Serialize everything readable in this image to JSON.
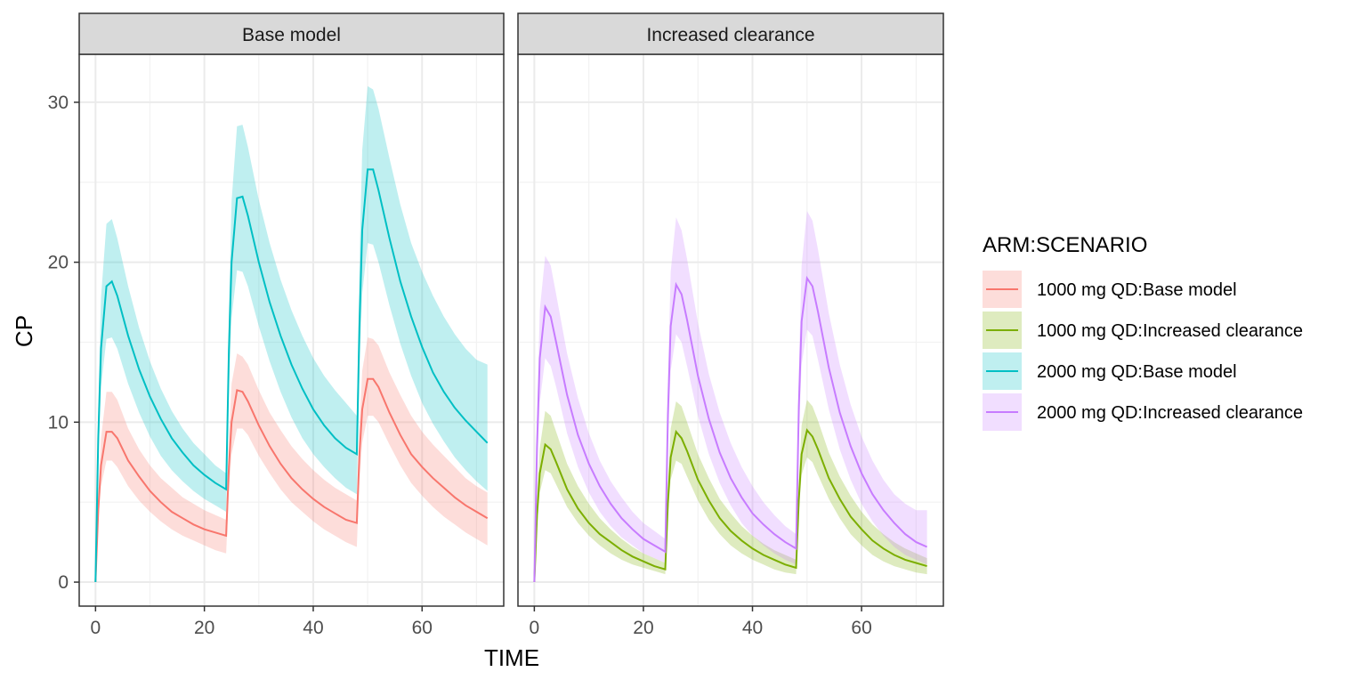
{
  "chart_data": {
    "type": "line",
    "xlabel": "TIME",
    "ylabel": "CP",
    "xlim": [
      -3,
      75
    ],
    "ylim": [
      -1.5,
      33
    ],
    "x_ticks": [
      0,
      20,
      40,
      60
    ],
    "y_ticks": [
      0,
      10,
      20,
      30
    ],
    "grid": true,
    "legend": {
      "title": "ARM:SCENARIO",
      "placement": "right",
      "entries": [
        "1000 mg QD:Base model",
        "1000 mg QD:Increased clearance",
        "2000 mg QD:Base model",
        "2000 mg QD:Increased clearance"
      ]
    },
    "panels": [
      {
        "title": "Base model",
        "series": [
          {
            "name": "1000 mg QD:Base model",
            "color": "#F8766D",
            "x": [
              0,
              0.5,
              1,
              2,
              3,
              4,
              6,
              8,
              10,
              12,
              14,
              16,
              18,
              20,
              22,
              24,
              24.5,
              25,
              26,
              27,
              28,
              30,
              32,
              34,
              36,
              38,
              40,
              42,
              44,
              46,
              48,
              48.5,
              49,
              50,
              51,
              52,
              54,
              56,
              58,
              60,
              62,
              64,
              66,
              68,
              70,
              72
            ],
            "y": [
              0,
              4.5,
              7.3,
              9.4,
              9.4,
              9.0,
              7.6,
              6.6,
              5.7,
              5.0,
              4.4,
              4.0,
              3.6,
              3.3,
              3.1,
              2.9,
              7.2,
              10.0,
              12.0,
              11.9,
              11.3,
              9.8,
              8.5,
              7.4,
              6.5,
              5.8,
              5.2,
              4.7,
              4.3,
              3.9,
              3.7,
              8.0,
              10.8,
              12.7,
              12.7,
              12.2,
              10.6,
              9.2,
              8.0,
              7.2,
              6.5,
              5.9,
              5.3,
              4.8,
              4.4,
              4.0
            ],
            "lower": [
              0,
              3.8,
              6.0,
              7.6,
              7.6,
              7.2,
              6.0,
              5.1,
              4.4,
              3.8,
              3.3,
              2.9,
              2.6,
              2.3,
              2.0,
              1.8,
              5.7,
              8.0,
              9.6,
              9.6,
              9.2,
              7.9,
              6.8,
              5.8,
              5.0,
              4.4,
              3.8,
              3.3,
              2.9,
              2.5,
              2.2,
              6.3,
              8.7,
              10.4,
              10.4,
              10.0,
              8.6,
              7.3,
              6.2,
              5.4,
              4.7,
              4.1,
              3.6,
              3.1,
              2.7,
              2.3
            ],
            "upper": [
              0,
              5.5,
              9.0,
              11.9,
              11.9,
              11.4,
              9.6,
              8.3,
              7.3,
              6.5,
              5.9,
              5.3,
              4.9,
              4.5,
              4.2,
              3.9,
              9.0,
              12.4,
              14.3,
              14.1,
              13.6,
              12.0,
              10.6,
              9.5,
              8.5,
              7.7,
              7.0,
              6.4,
              5.9,
              5.5,
              5.1,
              9.8,
              13.2,
              15.3,
              15.2,
              14.8,
              13.1,
              11.7,
              10.4,
              9.4,
              8.6,
              7.9,
              7.2,
              6.5,
              6.0,
              5.6
            ]
          },
          {
            "name": "2000 mg QD:Base model",
            "color": "#00BFC4",
            "x": [
              0,
              0.5,
              1,
              2,
              3,
              4,
              6,
              8,
              10,
              12,
              14,
              16,
              18,
              20,
              22,
              24,
              24.5,
              25,
              26,
              27,
              28,
              30,
              32,
              34,
              36,
              38,
              40,
              42,
              44,
              46,
              48,
              48.5,
              49,
              50,
              51,
              52,
              54,
              56,
              58,
              60,
              62,
              64,
              66,
              68,
              70,
              72
            ],
            "y": [
              0,
              9.0,
              14.6,
              18.5,
              18.8,
              17.9,
              15.4,
              13.3,
              11.6,
              10.2,
              9.0,
              8.1,
              7.3,
              6.7,
              6.2,
              5.8,
              14.5,
              20.0,
              24.0,
              24.1,
              22.9,
              20.0,
              17.5,
              15.4,
              13.6,
              12.1,
              10.8,
              9.8,
              9.0,
              8.4,
              8.0,
              16.0,
              22.0,
              25.8,
              25.8,
              24.5,
              21.5,
              18.8,
              16.6,
              14.7,
              13.1,
              11.9,
              10.9,
              10.1,
              9.4,
              8.7
            ],
            "lower": [
              0,
              7.6,
              12.2,
              15.2,
              15.3,
              14.6,
              12.4,
              10.6,
              9.1,
              7.9,
              7.0,
              6.3,
              5.7,
              5.2,
              4.8,
              4.4,
              12.0,
              16.5,
              19.5,
              19.4,
              18.5,
              16.0,
              13.8,
              11.9,
              10.3,
              9.0,
              8.0,
              7.2,
              6.5,
              5.9,
              5.5,
              13.4,
              18.0,
              21.2,
              21.1,
              20.0,
              17.3,
              14.9,
              12.9,
              11.2,
              9.9,
              8.8,
              7.8,
              7.0,
              6.3,
              5.7
            ],
            "upper": [
              0,
              11.0,
              17.8,
              22.4,
              22.7,
              21.5,
              18.5,
              15.9,
              13.8,
              12.1,
              10.7,
              9.6,
              8.7,
              8.0,
              7.3,
              6.8,
              17.0,
              23.8,
              28.5,
              28.6,
              27.2,
              23.9,
              21.2,
              18.9,
              17.0,
              15.4,
              14.0,
              12.9,
              12.0,
              11.2,
              10.4,
              20.0,
              27.0,
              31.0,
              30.8,
              29.6,
              26.5,
              23.6,
              21.2,
              19.4,
              17.9,
              16.6,
              15.5,
              14.6,
              13.9,
              13.6
            ]
          }
        ]
      },
      {
        "title": "Increased clearance",
        "series": [
          {
            "name": "1000 mg QD:Increased clearance",
            "color": "#7CAE00",
            "x": [
              0,
              0.5,
              1,
              2,
              3,
              4,
              6,
              8,
              10,
              12,
              14,
              16,
              18,
              20,
              22,
              24,
              24.5,
              25,
              26,
              27,
              28,
              30,
              32,
              34,
              36,
              38,
              40,
              42,
              44,
              46,
              48,
              48.5,
              49,
              50,
              51,
              52,
              54,
              56,
              58,
              60,
              62,
              64,
              66,
              68,
              70,
              72
            ],
            "y": [
              0,
              4.2,
              6.8,
              8.6,
              8.3,
              7.5,
              5.8,
              4.6,
              3.7,
              3.0,
              2.5,
              2.0,
              1.6,
              1.3,
              1.0,
              0.8,
              5.0,
              7.8,
              9.4,
              9.0,
              8.2,
              6.4,
              5.1,
              4.0,
              3.2,
              2.6,
              2.1,
              1.7,
              1.4,
              1.1,
              0.9,
              5.2,
              8.0,
              9.5,
              9.1,
              8.3,
              6.5,
              5.2,
              4.1,
              3.3,
              2.6,
              2.1,
              1.7,
              1.4,
              1.2,
              1.0
            ],
            "lower": [
              0,
              3.4,
              5.6,
              7.0,
              6.8,
              6.1,
              4.7,
              3.7,
              2.9,
              2.3,
              1.8,
              1.4,
              1.1,
              0.9,
              0.7,
              0.5,
              4.2,
              6.4,
              7.6,
              7.4,
              6.6,
              5.1,
              3.9,
              3.0,
              2.3,
              1.8,
              1.4,
              1.1,
              0.8,
              0.6,
              0.5,
              4.4,
              6.7,
              7.8,
              7.5,
              6.7,
              5.2,
              4.0,
              3.0,
              2.3,
              1.7,
              1.3,
              1.0,
              0.8,
              0.6,
              0.5
            ],
            "upper": [
              0,
              5.2,
              8.4,
              10.7,
              10.4,
              9.4,
              7.4,
              6.0,
              4.9,
              4.0,
              3.3,
              2.7,
              2.2,
              1.8,
              1.5,
              1.2,
              6.2,
              9.6,
              11.3,
              11.0,
              10.0,
              8.0,
              6.5,
              5.2,
              4.3,
              3.5,
              2.9,
              2.4,
              2.0,
              1.7,
              1.4,
              6.4,
              9.8,
              11.4,
              11.0,
              10.1,
              8.1,
              6.6,
              5.4,
              4.4,
              3.6,
              3.0,
              2.5,
              2.1,
              1.8,
              1.5
            ]
          },
          {
            "name": "2000 mg QD:Increased clearance",
            "color": "#C77CFF",
            "x": [
              0,
              0.5,
              1,
              2,
              3,
              4,
              6,
              8,
              10,
              12,
              14,
              16,
              18,
              20,
              22,
              24,
              24.5,
              25,
              26,
              27,
              28,
              30,
              32,
              34,
              36,
              38,
              40,
              42,
              44,
              46,
              48,
              48.5,
              49,
              50,
              51,
              52,
              54,
              56,
              58,
              60,
              62,
              64,
              66,
              68,
              70,
              72
            ],
            "y": [
              0,
              8.5,
              14.0,
              17.2,
              16.6,
              15.0,
              11.7,
              9.2,
              7.4,
              6.0,
              4.9,
              4.0,
              3.3,
              2.7,
              2.3,
              1.9,
              10.5,
              16.0,
              18.6,
              18.0,
              16.4,
              12.9,
              10.2,
              8.1,
              6.5,
              5.3,
              4.3,
              3.6,
              3.0,
              2.5,
              2.1,
              11.0,
              16.3,
              19.0,
              18.5,
              16.9,
              13.4,
              10.6,
              8.5,
              6.8,
              5.5,
              4.5,
              3.7,
              3.0,
              2.5,
              2.2
            ],
            "lower": [
              0,
              6.8,
              11.2,
              14.0,
              13.5,
              12.2,
              9.3,
              7.2,
              5.6,
              4.4,
              3.5,
              2.8,
              2.3,
              1.8,
              1.5,
              1.2,
              8.6,
              13.2,
              15.5,
              15.0,
              13.5,
              10.4,
              8.0,
              6.2,
              4.8,
              3.7,
              2.9,
              2.3,
              1.8,
              1.4,
              1.1,
              9.0,
              13.6,
              15.8,
              15.4,
              13.9,
              10.8,
              8.3,
              6.4,
              4.9,
              3.8,
              2.9,
              2.2,
              1.7,
              1.4,
              1.1
            ],
            "upper": [
              0,
              10.2,
              17.0,
              20.4,
              19.8,
              18.0,
              14.3,
              11.5,
              9.3,
              7.6,
              6.3,
              5.3,
              4.4,
              3.7,
              3.2,
              2.7,
              12.6,
              19.4,
              22.8,
              22.0,
              20.2,
              16.2,
              13.0,
              10.6,
              8.7,
              7.2,
              6.0,
              5.0,
              4.2,
              3.5,
              3.0,
              13.2,
              19.8,
              23.2,
              22.6,
              20.8,
              16.8,
              13.6,
              11.1,
              9.1,
              7.6,
              6.4,
              5.5,
              4.9,
              4.5,
              4.5
            ]
          }
        ]
      }
    ]
  }
}
